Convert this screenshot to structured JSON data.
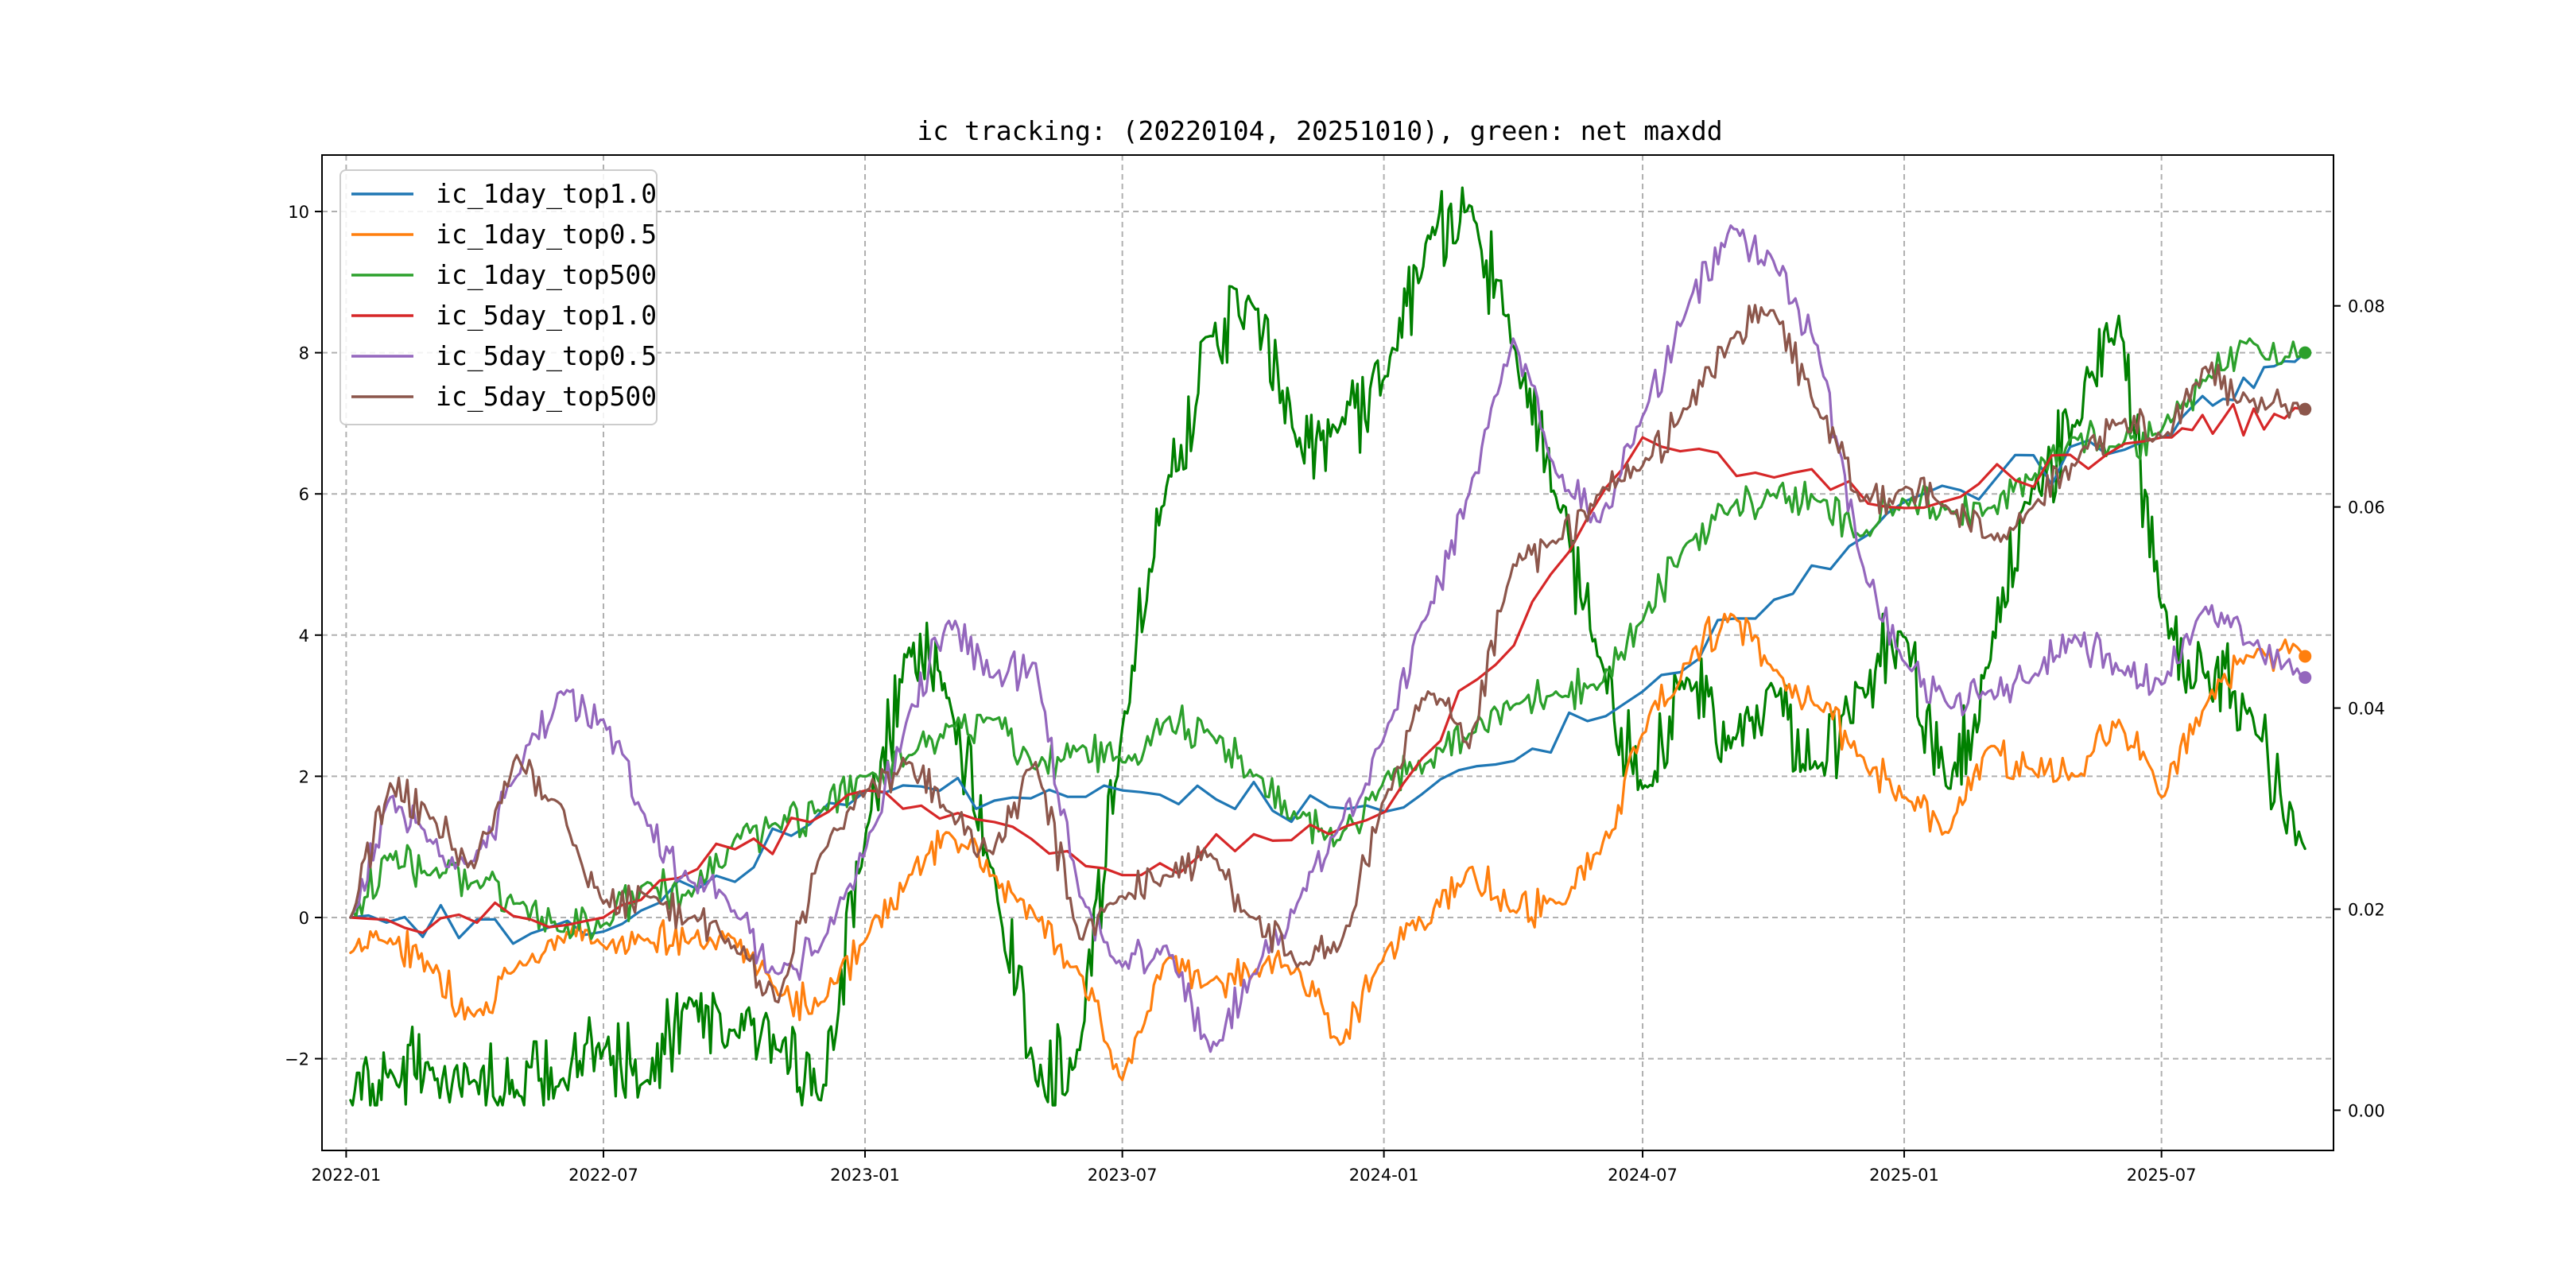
{
  "chart_data": {
    "type": "line",
    "title": "ic tracking: (20220104, 20251010), green: net maxdd",
    "xlabel": "",
    "ylabel": "",
    "x_range": [
      "2022-01-04",
      "2025-10-10"
    ],
    "x_ticks": [
      "2022-01",
      "2022-07",
      "2023-01",
      "2023-07",
      "2024-01",
      "2024-07",
      "2025-01",
      "2025-07"
    ],
    "y_left": {
      "ylim": [
        -3.3,
        10.8
      ],
      "ticks": [
        -2,
        0,
        2,
        4,
        6,
        8,
        10
      ],
      "tick_labels": [
        "−2",
        "0",
        "2",
        "4",
        "6",
        "8",
        "10"
      ]
    },
    "y_right": {
      "ylim": [
        -0.004,
        0.095
      ],
      "ticks": [
        0.0,
        0.02,
        0.04,
        0.06,
        0.08
      ],
      "tick_labels": [
        "0.00",
        "0.02",
        "0.04",
        "0.06",
        "0.08"
      ]
    },
    "grid": true,
    "legend_placement": "upper-left",
    "series": [
      {
        "name": "ic_1day_top1.0",
        "color": "#1f77b4",
        "axis": "left",
        "endpoint_marker": false,
        "points": [
          [
            "2022-01-04",
            0.0
          ],
          [
            "2022-07-01",
            -0.2
          ],
          [
            "2023-01-02",
            1.8
          ],
          [
            "2023-07-01",
            1.8
          ],
          [
            "2024-01-02",
            1.5
          ],
          [
            "2024-07-01",
            3.2
          ],
          [
            "2025-01-02",
            5.9
          ],
          [
            "2025-07-01",
            6.8
          ],
          [
            "2025-10-10",
            8.0
          ]
        ]
      },
      {
        "name": "ic_1day_top0.5",
        "color": "#ff7f0e",
        "axis": "left",
        "endpoint_marker": true,
        "points": [
          [
            "2022-01-04",
            -0.5
          ],
          [
            "2022-02-01",
            -0.3
          ],
          [
            "2022-03-01",
            -0.7
          ],
          [
            "2022-04-01",
            -1.4
          ],
          [
            "2022-05-01",
            -0.7
          ],
          [
            "2022-06-01",
            -0.3
          ],
          [
            "2022-07-01",
            -0.4
          ],
          [
            "2022-08-01",
            -0.3
          ],
          [
            "2022-09-01",
            -0.3
          ],
          [
            "2022-10-01",
            -0.3
          ],
          [
            "2022-11-01",
            -1.1
          ],
          [
            "2022-12-01",
            -1.2
          ],
          [
            "2023-01-02",
            -0.3
          ],
          [
            "2023-02-01",
            0.6
          ],
          [
            "2023-03-01",
            1.2
          ],
          [
            "2023-04-01",
            0.6
          ],
          [
            "2023-05-01",
            0.0
          ],
          [
            "2023-06-01",
            -0.8
          ],
          [
            "2023-07-01",
            -2.3
          ],
          [
            "2023-08-01",
            -0.6
          ],
          [
            "2023-09-01",
            -0.9
          ],
          [
            "2023-10-01",
            -0.8
          ],
          [
            "2023-11-01",
            -0.7
          ],
          [
            "2023-12-01",
            -1.8
          ],
          [
            "2024-01-02",
            -0.5
          ],
          [
            "2024-02-01",
            -0.1
          ],
          [
            "2024-03-01",
            0.7
          ],
          [
            "2024-04-01",
            0.1
          ],
          [
            "2024-05-01",
            0.2
          ],
          [
            "2024-06-01",
            0.9
          ],
          [
            "2024-07-01",
            2.6
          ],
          [
            "2024-08-01",
            3.6
          ],
          [
            "2024-09-01",
            4.3
          ],
          [
            "2024-10-01",
            3.5
          ],
          [
            "2024-11-01",
            3.0
          ],
          [
            "2024-12-01",
            2.3
          ],
          [
            "2025-01-02",
            1.7
          ],
          [
            "2025-02-01",
            1.2
          ],
          [
            "2025-03-01",
            2.4
          ],
          [
            "2025-04-01",
            2.1
          ],
          [
            "2025-05-01",
            2.0
          ],
          [
            "2025-06-01",
            2.8
          ],
          [
            "2025-07-01",
            1.7
          ],
          [
            "2025-08-01",
            3.0
          ],
          [
            "2025-09-01",
            3.7
          ],
          [
            "2025-10-10",
            3.7
          ]
        ]
      },
      {
        "name": "ic_1day_top500",
        "color": "#2ca02c",
        "axis": "left",
        "endpoint_marker": true,
        "points": [
          [
            "2022-01-04",
            0.0
          ],
          [
            "2022-02-01",
            0.9
          ],
          [
            "2022-03-01",
            0.6
          ],
          [
            "2022-04-01",
            0.5
          ],
          [
            "2022-05-01",
            0.2
          ],
          [
            "2022-06-01",
            -0.2
          ],
          [
            "2022-07-01",
            -0.1
          ],
          [
            "2022-08-01",
            0.5
          ],
          [
            "2022-09-01",
            0.3
          ],
          [
            "2022-10-01",
            1.1
          ],
          [
            "2022-11-01",
            1.3
          ],
          [
            "2022-12-01",
            1.5
          ],
          [
            "2023-01-02",
            2.0
          ],
          [
            "2023-02-01",
            2.3
          ],
          [
            "2023-03-01",
            2.7
          ],
          [
            "2023-04-01",
            2.8
          ],
          [
            "2023-05-01",
            2.1
          ],
          [
            "2023-06-01",
            2.4
          ],
          [
            "2023-07-01",
            2.2
          ],
          [
            "2023-08-01",
            2.8
          ],
          [
            "2023-09-01",
            2.6
          ],
          [
            "2023-10-01",
            2.0
          ],
          [
            "2023-11-01",
            1.4
          ],
          [
            "2023-12-01",
            1.1
          ],
          [
            "2024-01-02",
            2.0
          ],
          [
            "2024-02-01",
            2.2
          ],
          [
            "2024-03-01",
            2.6
          ],
          [
            "2024-04-01",
            3.0
          ],
          [
            "2024-05-01",
            3.2
          ],
          [
            "2024-06-01",
            3.3
          ],
          [
            "2024-07-01",
            4.2
          ],
          [
            "2024-08-01",
            5.3
          ],
          [
            "2024-09-01",
            5.8
          ],
          [
            "2024-10-01",
            6.0
          ],
          [
            "2024-11-01",
            5.9
          ],
          [
            "2024-12-01",
            5.4
          ],
          [
            "2025-01-02",
            5.9
          ],
          [
            "2025-02-01",
            5.8
          ],
          [
            "2025-03-01",
            5.8
          ],
          [
            "2025-04-01",
            6.2
          ],
          [
            "2025-05-01",
            6.8
          ],
          [
            "2025-06-01",
            6.7
          ],
          [
            "2025-07-01",
            6.9
          ],
          [
            "2025-08-01",
            7.6
          ],
          [
            "2025-09-01",
            8.2
          ],
          [
            "2025-10-10",
            8.0
          ]
        ]
      },
      {
        "name": "ic_5day_top1.0",
        "color": "#d62728",
        "axis": "left",
        "endpoint_marker": false,
        "points": [
          [
            "2022-01-04",
            0.0
          ],
          [
            "2022-07-01",
            0.0
          ],
          [
            "2023-01-02",
            1.8
          ],
          [
            "2023-07-01",
            0.6
          ],
          [
            "2024-01-02",
            1.5
          ],
          [
            "2024-07-01",
            6.8
          ],
          [
            "2025-01-02",
            5.8
          ],
          [
            "2025-07-01",
            6.8
          ],
          [
            "2025-10-10",
            7.2
          ]
        ]
      },
      {
        "name": "ic_5day_top0.5",
        "color": "#9467bd",
        "axis": "left",
        "endpoint_marker": true,
        "points": [
          [
            "2022-01-04",
            0.0
          ],
          [
            "2022-02-01",
            1.7
          ],
          [
            "2022-03-01",
            1.1
          ],
          [
            "2022-04-01",
            0.8
          ],
          [
            "2022-05-01",
            2.0
          ],
          [
            "2022-06-01",
            3.2
          ],
          [
            "2022-07-01",
            2.8
          ],
          [
            "2022-08-01",
            1.3
          ],
          [
            "2022-09-01",
            0.5
          ],
          [
            "2022-10-01",
            0.1
          ],
          [
            "2022-11-01",
            -0.8
          ],
          [
            "2022-12-01",
            -0.4
          ],
          [
            "2023-01-02",
            1.0
          ],
          [
            "2023-02-01",
            2.9
          ],
          [
            "2023-03-01",
            4.2
          ],
          [
            "2023-04-01",
            3.4
          ],
          [
            "2023-05-01",
            3.6
          ],
          [
            "2023-06-01",
            0.3
          ],
          [
            "2023-07-01",
            -0.7
          ],
          [
            "2023-08-01",
            -0.4
          ],
          [
            "2023-09-01",
            -1.9
          ],
          [
            "2023-10-01",
            -0.8
          ],
          [
            "2023-11-01",
            0.2
          ],
          [
            "2023-12-01",
            1.3
          ],
          [
            "2024-01-02",
            2.6
          ],
          [
            "2024-02-01",
            4.3
          ],
          [
            "2024-03-01",
            6.0
          ],
          [
            "2024-04-01",
            8.2
          ],
          [
            "2024-05-01",
            6.3
          ],
          [
            "2024-06-01",
            5.6
          ],
          [
            "2024-07-01",
            7.1
          ],
          [
            "2024-08-01",
            8.6
          ],
          [
            "2024-09-01",
            9.8
          ],
          [
            "2024-10-01",
            9.3
          ],
          [
            "2024-11-01",
            8.1
          ],
          [
            "2024-12-01",
            5.1
          ],
          [
            "2025-01-02",
            3.6
          ],
          [
            "2025-02-01",
            3.0
          ],
          [
            "2025-03-01",
            3.2
          ],
          [
            "2025-04-01",
            3.4
          ],
          [
            "2025-05-01",
            4.0
          ],
          [
            "2025-06-01",
            3.5
          ],
          [
            "2025-07-01",
            3.3
          ],
          [
            "2025-08-01",
            4.4
          ],
          [
            "2025-09-01",
            3.9
          ],
          [
            "2025-10-10",
            3.4
          ]
        ]
      },
      {
        "name": "ic_5day_top500",
        "color": "#8c564b",
        "axis": "left",
        "endpoint_marker": true,
        "points": [
          [
            "2022-01-04",
            0.0
          ],
          [
            "2022-02-01",
            1.9
          ],
          [
            "2022-03-01",
            1.4
          ],
          [
            "2022-04-01",
            0.7
          ],
          [
            "2022-05-01",
            2.3
          ],
          [
            "2022-06-01",
            1.6
          ],
          [
            "2022-07-01",
            0.2
          ],
          [
            "2022-08-01",
            0.3
          ],
          [
            "2022-09-01",
            0.0
          ],
          [
            "2022-10-01",
            -0.4
          ],
          [
            "2022-11-01",
            -1.2
          ],
          [
            "2022-12-01",
            0.9
          ],
          [
            "2023-01-02",
            1.8
          ],
          [
            "2023-02-01",
            2.2
          ],
          [
            "2023-03-01",
            1.5
          ],
          [
            "2023-04-01",
            0.9
          ],
          [
            "2023-05-01",
            2.2
          ],
          [
            "2023-06-01",
            -0.3
          ],
          [
            "2023-07-01",
            0.3
          ],
          [
            "2023-08-01",
            0.6
          ],
          [
            "2023-09-01",
            0.9
          ],
          [
            "2023-10-01",
            0.0
          ],
          [
            "2023-11-01",
            -0.7
          ],
          [
            "2023-12-01",
            -0.4
          ],
          [
            "2024-01-02",
            1.7
          ],
          [
            "2024-02-01",
            3.2
          ],
          [
            "2024-03-01",
            2.4
          ],
          [
            "2024-04-01",
            5.0
          ],
          [
            "2024-05-01",
            5.3
          ],
          [
            "2024-06-01",
            6.0
          ],
          [
            "2024-07-01",
            6.4
          ],
          [
            "2024-08-01",
            7.2
          ],
          [
            "2024-09-01",
            8.2
          ],
          [
            "2024-10-01",
            8.6
          ],
          [
            "2024-11-01",
            7.2
          ],
          [
            "2024-12-01",
            5.9
          ],
          [
            "2025-01-02",
            6.1
          ],
          [
            "2025-02-01",
            5.8
          ],
          [
            "2025-03-01",
            5.4
          ],
          [
            "2025-04-01",
            5.8
          ],
          [
            "2025-05-01",
            6.4
          ],
          [
            "2025-06-01",
            7.0
          ],
          [
            "2025-07-01",
            6.8
          ],
          [
            "2025-08-01",
            7.8
          ],
          [
            "2025-09-01",
            7.3
          ],
          [
            "2025-10-10",
            7.2
          ]
        ]
      },
      {
        "name": "net maxdd",
        "color": "#008000",
        "axis": "right",
        "endpoint_marker": false,
        "in_legend": false,
        "points": [
          [
            "2022-01-04",
            0.001
          ],
          [
            "2022-02-01",
            0.004
          ],
          [
            "2022-03-01",
            0.004
          ],
          [
            "2022-04-01",
            0.003
          ],
          [
            "2022-05-01",
            0.002
          ],
          [
            "2022-06-01",
            0.003
          ],
          [
            "2022-07-01",
            0.006
          ],
          [
            "2022-08-01",
            0.003
          ],
          [
            "2022-09-01",
            0.011
          ],
          [
            "2022-10-01",
            0.008
          ],
          [
            "2022-11-01",
            0.006
          ],
          [
            "2022-12-01",
            0.001
          ],
          [
            "2023-01-02",
            0.028
          ],
          [
            "2023-02-01",
            0.046
          ],
          [
            "2023-03-01",
            0.041
          ],
          [
            "2023-04-01",
            0.024
          ],
          [
            "2023-05-01",
            0.003
          ],
          [
            "2023-06-01",
            0.006
          ],
          [
            "2023-07-01",
            0.038
          ],
          [
            "2023-08-01",
            0.062
          ],
          [
            "2023-09-01",
            0.077
          ],
          [
            "2023-10-01",
            0.08
          ],
          [
            "2023-11-01",
            0.066
          ],
          [
            "2023-12-01",
            0.068
          ],
          [
            "2024-01-02",
            0.073
          ],
          [
            "2024-02-01",
            0.087
          ],
          [
            "2024-03-01",
            0.09
          ],
          [
            "2024-04-01",
            0.076
          ],
          [
            "2024-05-01",
            0.061
          ],
          [
            "2024-06-01",
            0.045
          ],
          [
            "2024-07-01",
            0.032
          ],
          [
            "2024-08-01",
            0.043
          ],
          [
            "2024-09-01",
            0.036
          ],
          [
            "2024-10-01",
            0.042
          ],
          [
            "2024-11-01",
            0.034
          ],
          [
            "2024-12-01",
            0.042
          ],
          [
            "2025-01-02",
            0.047
          ],
          [
            "2025-02-01",
            0.032
          ],
          [
            "2025-03-01",
            0.044
          ],
          [
            "2025-04-01",
            0.062
          ],
          [
            "2025-05-01",
            0.068
          ],
          [
            "2025-06-01",
            0.079
          ],
          [
            "2025-07-01",
            0.05
          ],
          [
            "2025-08-01",
            0.043
          ],
          [
            "2025-09-01",
            0.04
          ],
          [
            "2025-10-10",
            0.026
          ]
        ]
      }
    ]
  }
}
